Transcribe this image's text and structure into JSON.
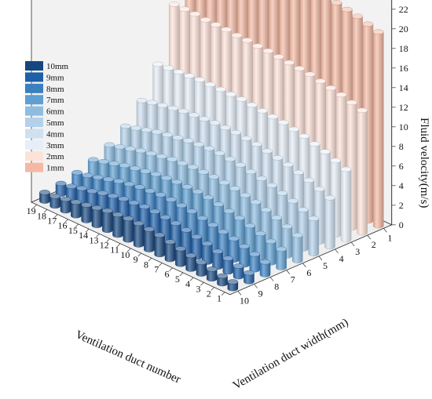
{
  "chart_data": {
    "type": "bar3d",
    "title": "",
    "xlabel": "Ventilation duct number",
    "ylabel": "Ventilation duct width(mm)",
    "zlabel": "Fluid velocity(m/s)",
    "x_ticks": [
      "1",
      "2",
      "3",
      "4",
      "5",
      "6",
      "7",
      "8",
      "9",
      "10",
      "11",
      "12",
      "13",
      "14",
      "15",
      "16",
      "17",
      "18",
      "19"
    ],
    "y_ticks": [
      "1",
      "2",
      "3",
      "4",
      "5",
      "6",
      "7",
      "8",
      "9",
      "10"
    ],
    "z_ticks": [
      "0",
      "2",
      "4",
      "6",
      "8",
      "10",
      "12",
      "14",
      "16",
      "18",
      "20",
      "22"
    ],
    "zlim": [
      0,
      23
    ],
    "legend_placement": "top-left",
    "series": [
      {
        "name": "1mm",
        "color": "#f4b9a4",
        "values": [
          19.8,
          20.1,
          20.4,
          20.6,
          20.8,
          21.0,
          21.2,
          21.3,
          21.4,
          21.5,
          21.6,
          21.7,
          21.8,
          21.8,
          21.9,
          21.9,
          22.0,
          22.0,
          22.1
        ]
      },
      {
        "name": "2mm",
        "color": "#fde2d8",
        "values": [
          12.5,
          12.8,
          13.1,
          13.3,
          13.5,
          13.7,
          13.8,
          13.9,
          14.0,
          14.1,
          14.1,
          14.2,
          14.2,
          14.3,
          14.3,
          14.3,
          14.4,
          14.4,
          14.4
        ]
      },
      {
        "name": "3mm",
        "color": "#e6eef8",
        "values": [
          7.2,
          7.6,
          8.0,
          8.3,
          8.6,
          8.8,
          9.0,
          9.1,
          9.2,
          9.3,
          9.4,
          9.4,
          9.4,
          9.4,
          9.4,
          9.3,
          9.2,
          9.1,
          9.0
        ]
      },
      {
        "name": "4mm",
        "color": "#cfe0f1",
        "values": [
          5.0,
          5.4,
          5.8,
          6.1,
          6.4,
          6.6,
          6.8,
          7.0,
          7.1,
          7.2,
          7.2,
          7.2,
          7.1,
          7.0,
          6.9,
          6.7,
          6.5,
          6.3,
          6.0
        ]
      },
      {
        "name": "5mm",
        "color": "#b3d1ea",
        "values": [
          3.6,
          4.0,
          4.4,
          4.7,
          5.0,
          5.2,
          5.4,
          5.6,
          5.7,
          5.8,
          5.8,
          5.7,
          5.6,
          5.4,
          5.2,
          5.0,
          4.7,
          4.4,
          4.1
        ]
      },
      {
        "name": "6mm",
        "color": "#8fbde0",
        "values": [
          2.6,
          3.0,
          3.4,
          3.7,
          4.0,
          4.2,
          4.4,
          4.5,
          4.6,
          4.6,
          4.6,
          4.5,
          4.4,
          4.2,
          4.0,
          3.8,
          3.5,
          3.2,
          2.9
        ]
      },
      {
        "name": "7mm",
        "color": "#5f9fd1",
        "values": [
          1.9,
          2.2,
          2.5,
          2.8,
          3.1,
          3.3,
          3.5,
          3.7,
          3.8,
          3.8,
          3.8,
          3.7,
          3.6,
          3.4,
          3.2,
          3.0,
          2.7,
          2.4,
          2.1
        ]
      },
      {
        "name": "8mm",
        "color": "#3a7fc0",
        "values": [
          1.3,
          1.6,
          1.9,
          2.2,
          2.4,
          2.6,
          2.8,
          3.0,
          3.1,
          3.2,
          3.2,
          3.1,
          3.0,
          2.8,
          2.6,
          2.3,
          2.0,
          1.7,
          1.5
        ]
      },
      {
        "name": "9mm",
        "color": "#1f5fa8",
        "values": [
          0.9,
          1.1,
          1.4,
          1.6,
          1.9,
          2.1,
          2.3,
          2.5,
          2.6,
          2.7,
          2.7,
          2.6,
          2.5,
          2.3,
          2.1,
          1.8,
          1.6,
          1.3,
          1.1
        ]
      },
      {
        "name": "10mm",
        "color": "#16467f",
        "values": [
          0.7,
          0.8,
          1.0,
          1.2,
          1.4,
          1.6,
          1.8,
          2.0,
          2.1,
          2.2,
          2.2,
          2.1,
          2.0,
          1.8,
          1.6,
          1.4,
          1.2,
          1.0,
          0.9
        ]
      }
    ]
  }
}
